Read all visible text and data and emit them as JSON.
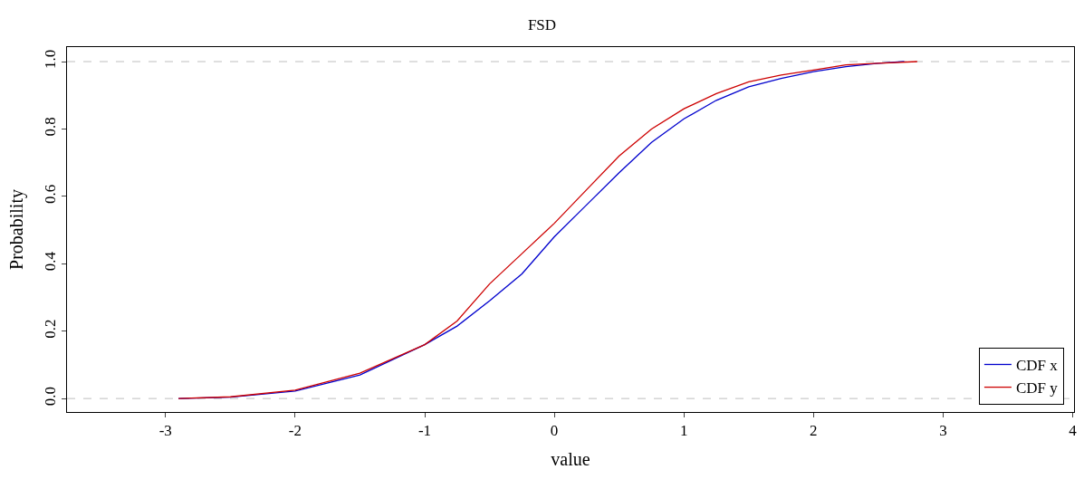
{
  "chart_data": {
    "type": "line",
    "title": "FSD",
    "xlabel": "value",
    "ylabel": "Probability",
    "series": [
      {
        "name": "CDF x",
        "color": "#0000cd",
        "x": [
          -2.9,
          -2.5,
          -2,
          -1.5,
          -1,
          -0.75,
          -0.5,
          -0.25,
          0,
          0.25,
          0.5,
          0.75,
          1,
          1.25,
          1.5,
          1.75,
          2,
          2.25,
          2.5,
          2.7
        ],
        "values": [
          0,
          0.004,
          0.022,
          0.07,
          0.16,
          0.215,
          0.29,
          0.37,
          0.48,
          0.575,
          0.67,
          0.76,
          0.83,
          0.885,
          0.925,
          0.95,
          0.97,
          0.985,
          0.995,
          1.0
        ]
      },
      {
        "name": "CDF y",
        "color": "#cd0000",
        "x": [
          -2.9,
          -2.5,
          -2,
          -1.5,
          -1,
          -0.75,
          -0.5,
          -0.25,
          0,
          0.25,
          0.5,
          0.75,
          1,
          1.25,
          1.5,
          1.75,
          2,
          2.25,
          2.5,
          2.8
        ],
        "values": [
          0,
          0.005,
          0.025,
          0.075,
          0.16,
          0.23,
          0.34,
          0.43,
          0.52,
          0.62,
          0.72,
          0.8,
          0.86,
          0.905,
          0.94,
          0.96,
          0.975,
          0.99,
          0.995,
          1.0
        ]
      }
    ],
    "xlim": [
      -3.76,
      4.01
    ],
    "xticks": [
      -3,
      -2,
      -1,
      0,
      1,
      2,
      3,
      4
    ],
    "ylim": [
      -0.04,
      1.043
    ],
    "yticks": [
      {
        "value": 0,
        "label": "0.0"
      },
      0.2,
      0.4,
      0.6,
      0.8,
      {
        "value": 1,
        "label": "1.0"
      }
    ],
    "ref_lines": [
      {
        "axis": "y",
        "value": 0,
        "color": "#bebebe",
        "line_style": "dashed"
      },
      {
        "axis": "y",
        "value": 1,
        "color": "#bebebe",
        "line_style": "dashed"
      }
    ],
    "grid": false,
    "legend": "bottom right",
    "marker": "none",
    "line_style": "solid"
  }
}
